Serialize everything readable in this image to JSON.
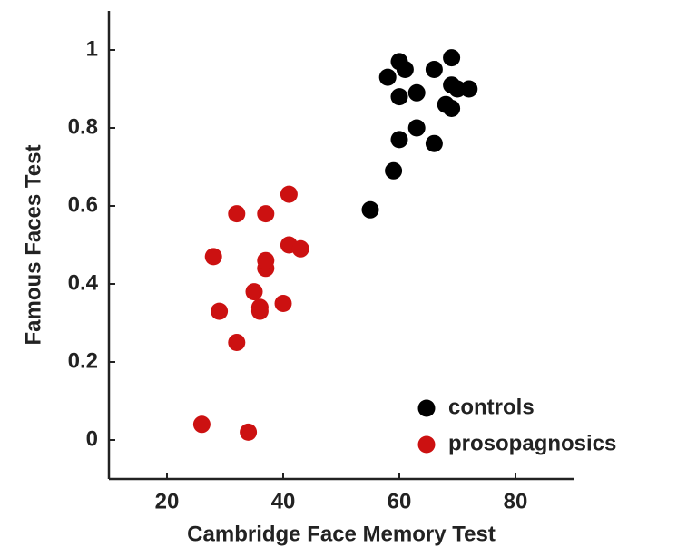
{
  "chart_data": {
    "type": "scatter",
    "x_label": "Cambridge Face Memory Test",
    "y_label": "Famous Faces Test",
    "xlim": [
      10,
      90
    ],
    "xticks": [
      20,
      40,
      60,
      80
    ],
    "ylim": [
      -0.1,
      1.1
    ],
    "yticks": [
      0,
      0.2,
      0.4,
      0.6,
      0.8,
      1
    ],
    "legend": "lower right",
    "series": [
      {
        "name": "controls",
        "color": "#000000",
        "x": [
          55,
          59,
          60,
          63,
          66,
          60,
          63,
          58,
          60,
          61,
          66,
          69,
          69,
          68,
          69,
          72,
          70
        ],
        "values": [
          0.59,
          0.69,
          0.77,
          0.8,
          0.76,
          0.88,
          0.89,
          0.93,
          0.97,
          0.95,
          0.95,
          0.98,
          0.91,
          0.86,
          0.85,
          0.9,
          0.9
        ]
      },
      {
        "name": "prosopagnosics",
        "color": "#cc1111",
        "x": [
          26,
          34,
          32,
          29,
          36,
          36,
          40,
          35,
          37,
          37,
          28,
          41,
          43,
          32,
          37,
          41
        ],
        "values": [
          0.04,
          0.02,
          0.25,
          0.33,
          0.33,
          0.34,
          0.35,
          0.38,
          0.44,
          0.46,
          0.47,
          0.5,
          0.49,
          0.58,
          0.58,
          0.63
        ]
      }
    ]
  }
}
